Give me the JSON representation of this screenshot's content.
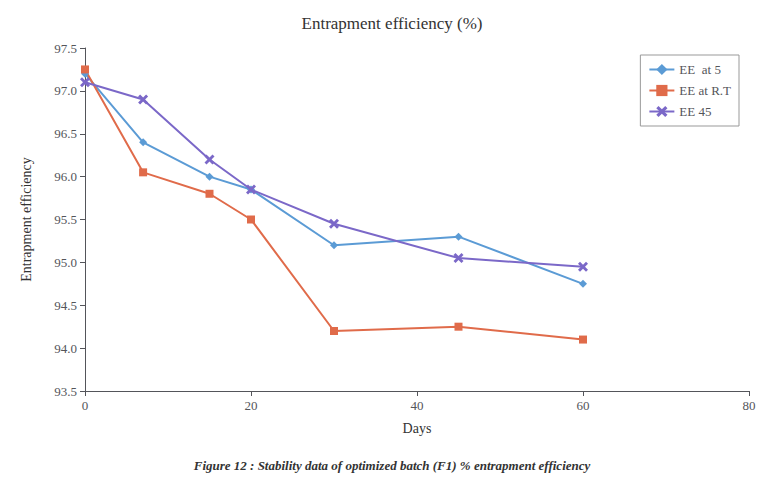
{
  "chart_data": {
    "type": "line",
    "title": "Entrapment efficiency (%)",
    "xlabel": "Days",
    "ylabel": "Entrapment efficiency",
    "caption": "Figure 12 : Stability data of optimized batch (F1) % entrapment efficiency",
    "x": [
      0,
      7,
      15,
      20,
      30,
      45,
      60
    ],
    "series": [
      {
        "name": "EE  at 5",
        "color": "#5b9bd5",
        "marker": "diamond",
        "values": [
          97.2,
          96.4,
          96.0,
          95.85,
          95.2,
          95.3,
          94.75
        ]
      },
      {
        "name": "EE at R.T",
        "color": "#e06b4a",
        "marker": "square",
        "values": [
          97.25,
          96.05,
          95.8,
          95.5,
          94.2,
          94.25,
          94.1
        ]
      },
      {
        "name": "EE 45",
        "color": "#7b68c8",
        "marker": "x",
        "values": [
          97.1,
          96.9,
          96.2,
          95.85,
          95.45,
          95.05,
          94.95
        ]
      }
    ],
    "xlim": [
      0,
      80
    ],
    "xticks": [
      0,
      20,
      40,
      60,
      80
    ],
    "ylim": [
      93.5,
      97.5
    ],
    "yticks": [
      93.5,
      {
        "value": 94.0,
        "label": "94.0"
      },
      94.5,
      {
        "value": 95.0,
        "label": "95.0"
      },
      95.5,
      {
        "value": 96.0,
        "label": "96.0"
      },
      96.5,
      {
        "value": 97.0,
        "label": "97.0"
      },
      97.5
    ],
    "grid": false,
    "legend": "upper right"
  }
}
